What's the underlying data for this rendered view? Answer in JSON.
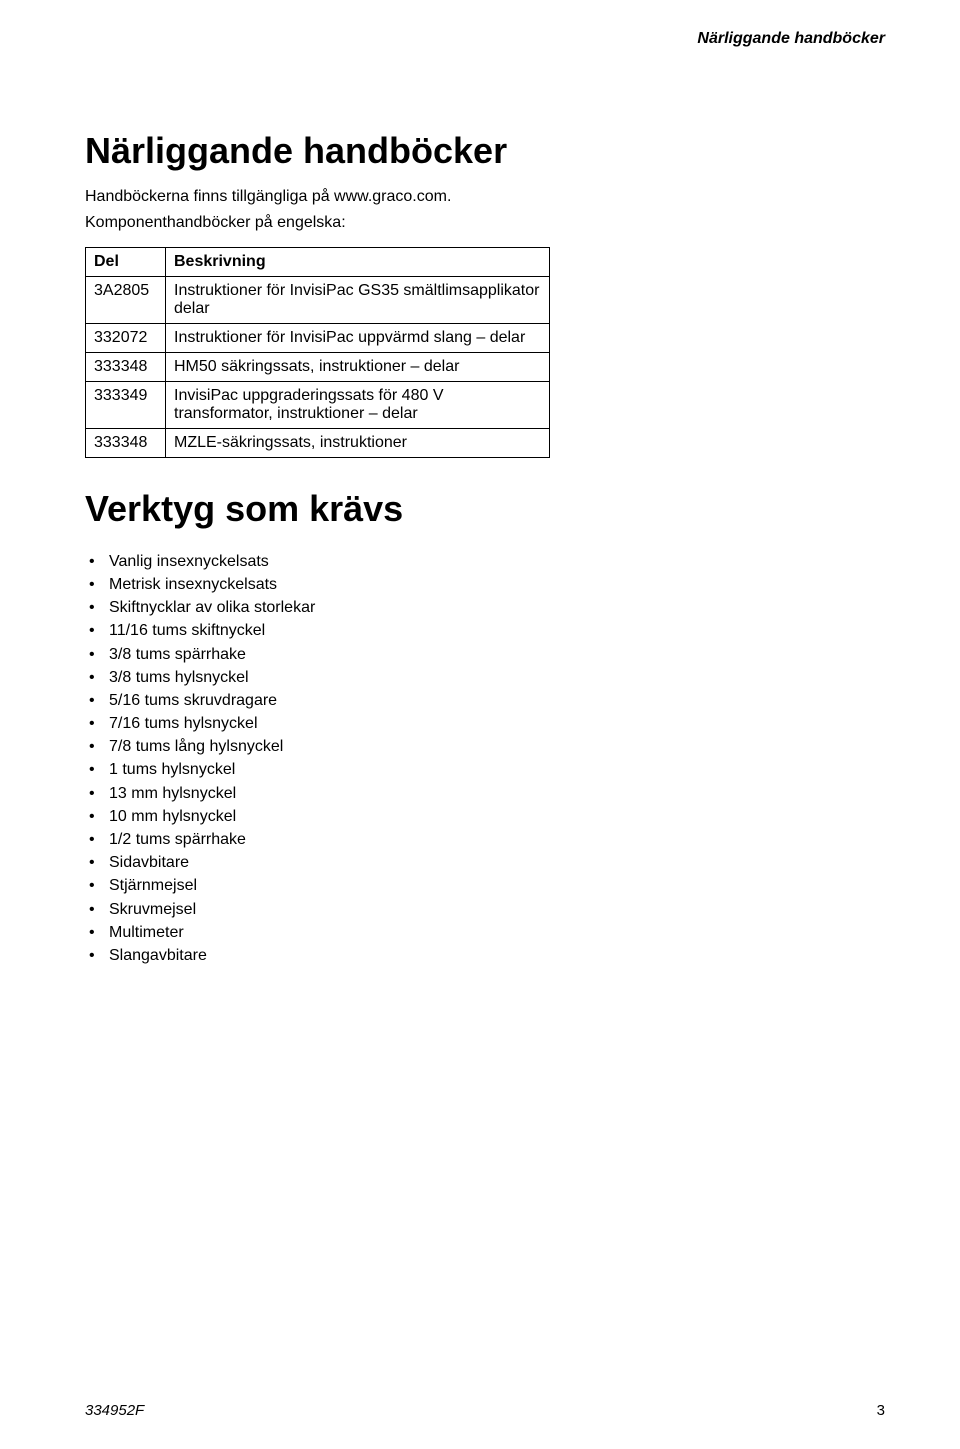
{
  "header": {
    "running_title": "Närliggande handböcker"
  },
  "section1": {
    "title": "Närliggande handböcker",
    "intro1": "Handböckerna finns tillgängliga på www.graco.com.",
    "intro2": "Komponenthandböcker på engelska:"
  },
  "table": {
    "columns": [
      "Del",
      "Beskrivning"
    ],
    "rows": [
      [
        "3A2805",
        "Instruktioner för InvisiPac GS35 smältlimsapplikator delar"
      ],
      [
        "332072",
        "Instruktioner för InvisiPac uppvärmd slang – delar"
      ],
      [
        "333348",
        "HM50 säkringssats, instruktioner – delar"
      ],
      [
        "333349",
        "InvisiPac uppgraderingssats för 480 V transformator, instruktioner – delar"
      ],
      [
        "333348",
        "MZLE-säkringssats, instruktioner"
      ]
    ]
  },
  "section2": {
    "title": "Verktyg som krävs",
    "items": [
      "Vanlig insexnyckelsats",
      "Metrisk insexnyckelsats",
      "Skiftnycklar av olika storlekar",
      "11/16 tums skiftnyckel",
      "3/8 tums spärrhake",
      "3/8 tums hylsnyckel",
      "5/16 tums skruvdragare",
      "7/16 tums hylsnyckel",
      "7/8 tums lång hylsnyckel",
      "1 tums hylsnyckel",
      "13 mm hylsnyckel",
      "10 mm hylsnyckel",
      "1/2 tums spärrhake",
      "Sidavbitare",
      "Stjärnmejsel",
      "Skruvmejsel",
      "Multimeter",
      "Slangavbitare"
    ]
  },
  "footer": {
    "doc_id": "334952F",
    "page_num": "3"
  }
}
